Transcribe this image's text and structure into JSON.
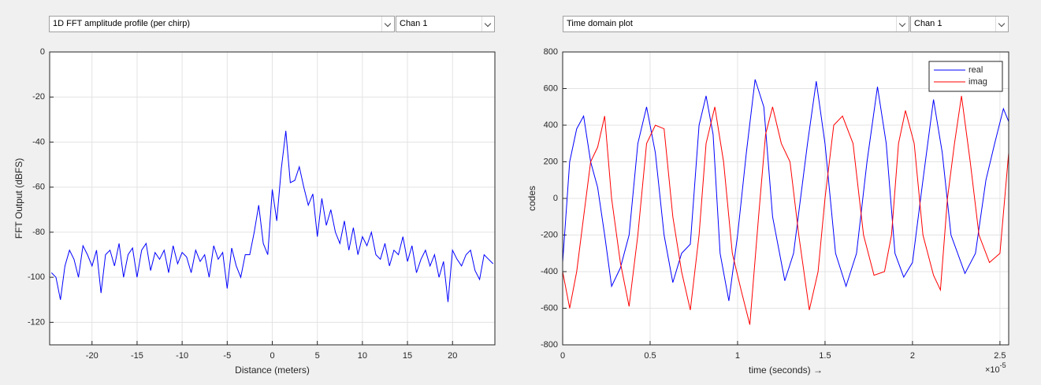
{
  "controls": [
    "1D FFT amplitude profile (per chirp)",
    "Chan 1",
    "Time domain plot",
    "Chan 1"
  ],
  "chart_data": [
    {
      "type": "line",
      "xlabel": "Distance (meters)",
      "ylabel": "FFT Output (dBFS)",
      "xlim": [
        -24.7,
        24.7
      ],
      "ylim": [
        -130,
        0
      ],
      "xticks": [
        -20,
        -15,
        -10,
        -5,
        0,
        5,
        10,
        15,
        20
      ],
      "yticks": [
        -120,
        -100,
        -80,
        -60,
        -40,
        -20,
        0
      ],
      "grid": true,
      "series": [
        {
          "color": "#0000ff",
          "x": [
            -24.5,
            -24,
            -23.5,
            -23,
            -22.5,
            -22,
            -21.5,
            -21,
            -20.5,
            -20,
            -19.5,
            -19,
            -18.5,
            -18,
            -17.5,
            -17,
            -16.5,
            -16,
            -15.5,
            -15,
            -14.5,
            -14,
            -13.5,
            -13,
            -12.5,
            -12,
            -11.5,
            -11,
            -10.5,
            -10,
            -9.5,
            -9,
            -8.5,
            -8,
            -7.5,
            -7,
            -6.5,
            -6,
            -5.5,
            -5,
            -4.5,
            -4,
            -3.5,
            -3,
            -2.5,
            -2,
            -1.5,
            -1,
            -0.5,
            0,
            0.5,
            1,
            1.5,
            2,
            2.5,
            3,
            3.5,
            4,
            4.5,
            5,
            5.5,
            6,
            6.5,
            7,
            7.5,
            8,
            8.5,
            9,
            9.5,
            10,
            10.5,
            11,
            11.5,
            12,
            12.5,
            13,
            13.5,
            14,
            14.5,
            15,
            15.5,
            16,
            16.5,
            17,
            17.5,
            18,
            18.5,
            19,
            19.5,
            20,
            20.5,
            21,
            21.5,
            22,
            22.5,
            23,
            23.5,
            24,
            24.5
          ],
          "values": [
            -98,
            -100,
            -110,
            -95,
            -88,
            -92,
            -100,
            -86,
            -90,
            -95,
            -88,
            -107,
            -90,
            -88,
            -95,
            -85,
            -100,
            -90,
            -87,
            -100,
            -88,
            -85,
            -97,
            -89,
            -92,
            -88,
            -98,
            -86,
            -94,
            -89,
            -91,
            -98,
            -88,
            -93,
            -90,
            -100,
            -86,
            -92,
            -89,
            -105,
            -87,
            -95,
            -100,
            -90,
            -90,
            -80,
            -68,
            -85,
            -90,
            -61,
            -75,
            -52,
            -35,
            -58,
            -57,
            -51,
            -60,
            -68,
            -63,
            -82,
            -65,
            -77,
            -70,
            -80,
            -85,
            -75,
            -88,
            -78,
            -90,
            -82,
            -86,
            -80,
            -90,
            -92,
            -85,
            -95,
            -88,
            -90,
            -82,
            -93,
            -86,
            -98,
            -92,
            -88,
            -95,
            -90,
            -100,
            -93,
            -111,
            -88,
            -92,
            -95,
            -90,
            -88,
            -97,
            -101,
            -90,
            -92,
            -94
          ]
        }
      ]
    },
    {
      "type": "line",
      "xlabel": "time  (seconds) →",
      "ylabel": "codes",
      "x_multiplier_label": "×10",
      "x_multiplier_exponent": "-5",
      "xlim": [
        0,
        2.55
      ],
      "ylim": [
        -800,
        800
      ],
      "xticks": [
        0,
        0.5,
        1,
        1.5,
        2,
        2.5
      ],
      "yticks": [
        -800,
        -600,
        -400,
        -200,
        0,
        200,
        400,
        600,
        800
      ],
      "grid": true,
      "legend": "northeast",
      "series": [
        {
          "name": "real",
          "color": "#0000ff",
          "x": [
            0,
            0.04,
            0.08,
            0.12,
            0.16,
            0.2,
            0.24,
            0.28,
            0.33,
            0.38,
            0.43,
            0.48,
            0.53,
            0.58,
            0.63,
            0.68,
            0.73,
            0.78,
            0.82,
            0.86,
            0.9,
            0.95,
            1.0,
            1.05,
            1.1,
            1.15,
            1.2,
            1.27,
            1.32,
            1.4,
            1.45,
            1.5,
            1.56,
            1.62,
            1.68,
            1.74,
            1.8,
            1.85,
            1.9,
            1.95,
            2.0,
            2.06,
            2.12,
            2.17,
            2.22,
            2.3,
            2.36,
            2.42,
            2.47,
            2.52,
            2.55
          ],
          "values": [
            -350,
            200,
            380,
            450,
            200,
            60,
            -200,
            -480,
            -380,
            -200,
            300,
            500,
            250,
            -200,
            -460,
            -300,
            -250,
            400,
            560,
            350,
            -300,
            -560,
            -200,
            250,
            650,
            500,
            -100,
            -450,
            -300,
            300,
            640,
            300,
            -300,
            -480,
            -300,
            200,
            610,
            300,
            -300,
            -430,
            -350,
            100,
            540,
            250,
            -200,
            -410,
            -300,
            100,
            300,
            490,
            420
          ]
        },
        {
          "name": "imag",
          "color": "#ff0000",
          "x": [
            0,
            0.04,
            0.08,
            0.12,
            0.16,
            0.2,
            0.24,
            0.28,
            0.33,
            0.38,
            0.43,
            0.48,
            0.53,
            0.58,
            0.63,
            0.68,
            0.73,
            0.78,
            0.82,
            0.87,
            0.92,
            0.97,
            1.02,
            1.07,
            1.12,
            1.16,
            1.2,
            1.25,
            1.3,
            1.35,
            1.41,
            1.46,
            1.5,
            1.55,
            1.6,
            1.66,
            1.72,
            1.78,
            1.84,
            1.88,
            1.92,
            1.96,
            2.01,
            2.06,
            2.12,
            2.16,
            2.2,
            2.24,
            2.28,
            2.33,
            2.38,
            2.44,
            2.5,
            2.55
          ],
          "values": [
            -400,
            -600,
            -400,
            -100,
            200,
            280,
            450,
            0,
            -350,
            -590,
            -200,
            300,
            400,
            380,
            -100,
            -400,
            -610,
            -200,
            300,
            500,
            200,
            -300,
            -500,
            -690,
            -100,
            350,
            500,
            300,
            200,
            -200,
            -610,
            -400,
            0,
            400,
            450,
            300,
            -200,
            -420,
            -400,
            -200,
            300,
            480,
            300,
            -200,
            -420,
            -500,
            0,
            300,
            560,
            200,
            -200,
            -350,
            -300,
            250
          ]
        }
      ]
    }
  ]
}
